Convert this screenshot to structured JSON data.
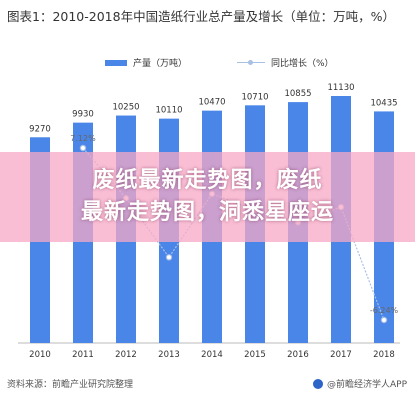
{
  "chart_data": {
    "type": "bar",
    "title": "图表1：2010-2018年中国造纸行业总产量及增长（单位：万吨，%）",
    "categories": [
      "2010",
      "2011",
      "2012",
      "2013",
      "2014",
      "2015",
      "2016",
      "2017",
      "2018"
    ],
    "series": [
      {
        "name": "产量（万吨）",
        "type": "bar",
        "values": [
          9270,
          9930,
          10250,
          10110,
          10470,
          10710,
          10855,
          11130,
          10435
        ]
      },
      {
        "name": "同比增长（%）",
        "type": "line",
        "values": [
          null,
          7.12,
          3.22,
          -1.37,
          3.56,
          2.29,
          1.35,
          2.53,
          -6.24
        ]
      }
    ],
    "data_labels": {
      "bars": [
        "9270",
        "9930",
        "10250",
        "10110",
        "10470",
        "10710",
        "10855",
        "11130",
        "10435"
      ],
      "line_visible": {
        "2011": "7.12%",
        "2018": "-6.24%"
      }
    },
    "ylim": [
      0,
      12000
    ],
    "legend": "top-center",
    "grid": false,
    "colors": {
      "bar": "#4a86e8",
      "line": "#a9c0e6"
    }
  },
  "overlay": {
    "banner_line1": "废纸最新走势图，废纸",
    "banner_line2": "最新走势图，洞悉星座运",
    "banner_color": "#f7a8c6"
  },
  "footer": {
    "source": "资料来源：前瞻产业研究院整理",
    "brand": "@前瞻经济学人APP",
    "brand_icon": "brand-logo-icon"
  }
}
